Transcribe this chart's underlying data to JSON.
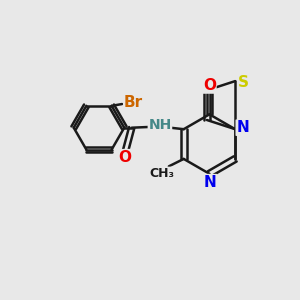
{
  "bg_color": "#e8e8e8",
  "bond_color": "#1a1a1a",
  "bond_width": 1.8,
  "atom_colors": {
    "C": "#1a1a1a",
    "N": "#0000ee",
    "O": "#ee0000",
    "S": "#cccc00",
    "Br": "#cc6600",
    "H": "#448888"
  },
  "font_size": 10
}
